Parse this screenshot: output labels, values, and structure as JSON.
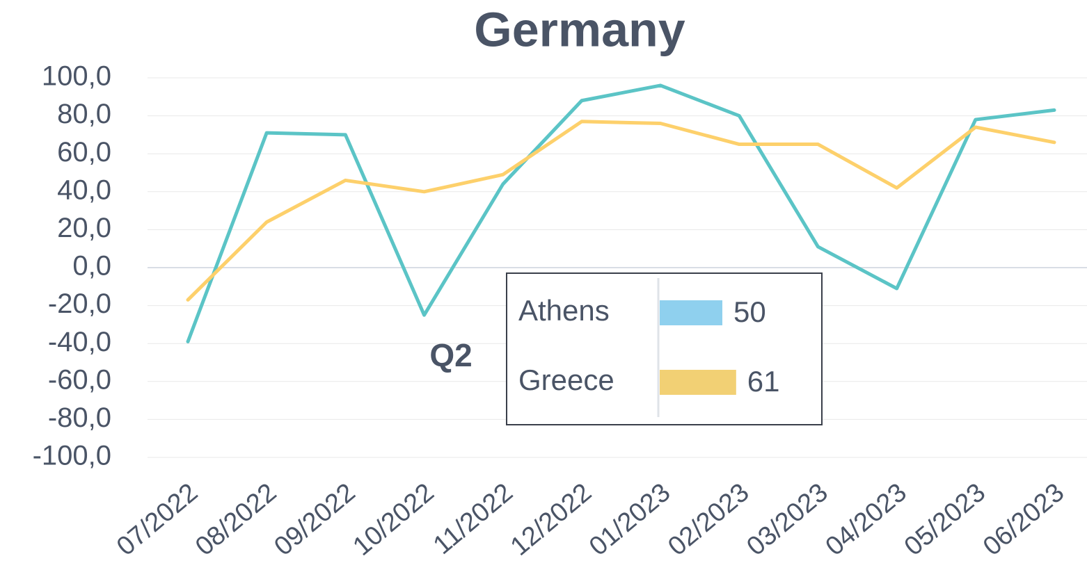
{
  "chart_data": {
    "type": "line",
    "title": "Germany",
    "annotation": "Q2",
    "categories": [
      "07/2022",
      "08/2022",
      "09/2022",
      "10/2022",
      "11/2022",
      "12/2022",
      "01/2023",
      "02/2023",
      "03/2023",
      "04/2023",
      "05/2023",
      "06/2023"
    ],
    "series": [
      {
        "name": "Athens",
        "color": "#5bc4c6",
        "legend_color": "#8fd0ee",
        "legend_value": 50,
        "values": [
          -39,
          71,
          70,
          -25,
          44,
          88,
          96,
          80,
          11,
          -11,
          78,
          83
        ]
      },
      {
        "name": "Greece",
        "color": "#fdd06b",
        "legend_color": "#f2d074",
        "legend_value": 61,
        "values": [
          -17,
          24,
          46,
          40,
          49,
          77,
          76,
          65,
          65,
          42,
          74,
          66
        ]
      }
    ],
    "ylim": [
      -100,
      100
    ],
    "yticks": [
      {
        "value": -100,
        "label": "-100,0"
      },
      {
        "value": -80,
        "label": "-80,0"
      },
      {
        "value": -60,
        "label": "-60,0"
      },
      {
        "value": -40,
        "label": "-40,0"
      },
      {
        "value": -20,
        "label": "-20,0"
      },
      {
        "value": 0,
        "label": "0,0"
      },
      {
        "value": 20,
        "label": "20,0"
      },
      {
        "value": 40,
        "label": "40,0"
      },
      {
        "value": 60,
        "label": "60,0"
      },
      {
        "value": 80,
        "label": "80,0"
      },
      {
        "value": 100,
        "label": "100,0"
      }
    ],
    "grid": true
  }
}
